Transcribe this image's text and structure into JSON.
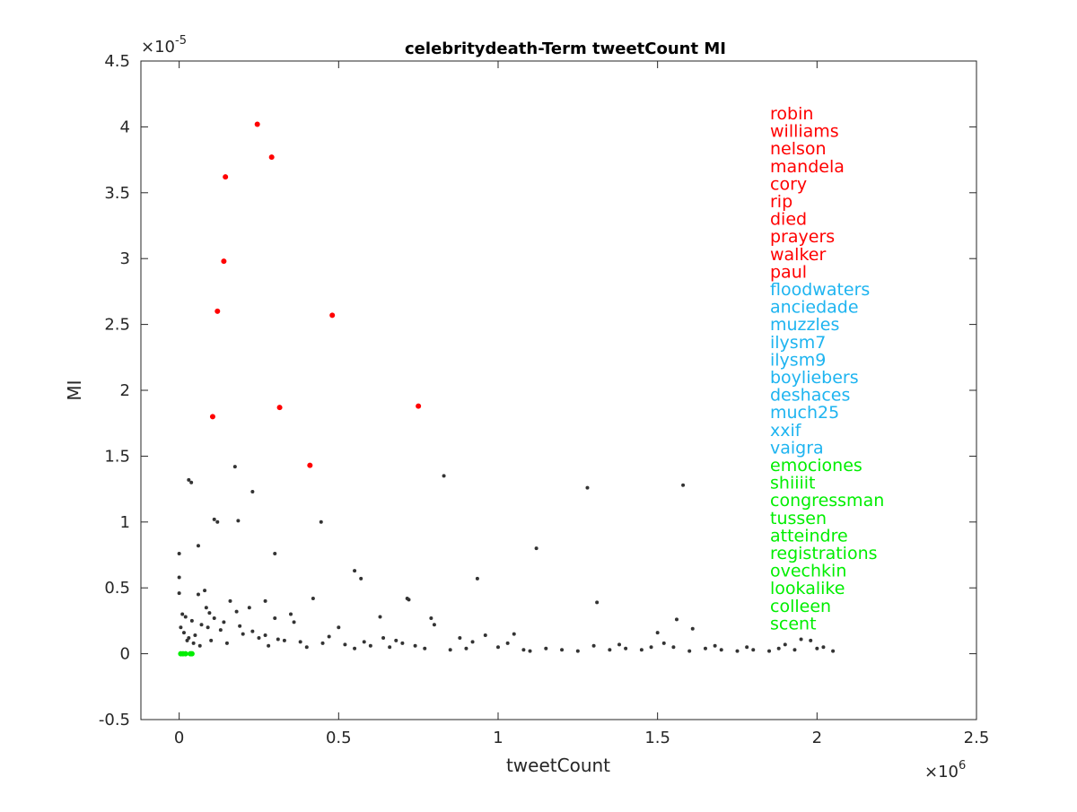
{
  "chart_data": {
    "type": "scatter",
    "title": "celebritydeath-Term tweetCount MI",
    "xlabel": "tweetCount",
    "ylabel": "MI",
    "x_exponent_label": "×10",
    "x_exponent_power": "6",
    "y_exponent_label": "×10",
    "y_exponent_power": "-5",
    "xlim": [
      -0.12,
      2.5
    ],
    "ylim": [
      -0.5,
      4.5
    ],
    "x_scale_note": "x values shown in units of 1e6",
    "y_scale_note": "y values shown in units of 1e-5",
    "xticks": [
      0,
      0.5,
      1,
      1.5,
      2,
      2.5
    ],
    "xtick_labels": [
      "0",
      "0.5",
      "1",
      "1.5",
      "2",
      "2.5"
    ],
    "yticks": [
      -0.5,
      0,
      0.5,
      1,
      1.5,
      2,
      2.5,
      3,
      3.5,
      4,
      4.5
    ],
    "ytick_labels": [
      "-0.5",
      "0",
      "0.5",
      "1",
      "1.5",
      "2",
      "2.5",
      "3",
      "3.5",
      "4",
      "4.5"
    ],
    "grid": false,
    "legend": "none",
    "colors": {
      "top": "#ff0000",
      "mid": "#1eb4f0",
      "low": "#00ee00",
      "other": "#333333"
    },
    "series": [
      {
        "color": "#ff0000",
        "points": [
          [
            0.245,
            4.02
          ],
          [
            0.29,
            3.77
          ],
          [
            0.145,
            3.62
          ],
          [
            0.14,
            2.98
          ],
          [
            0.12,
            2.6
          ],
          [
            0.48,
            2.57
          ],
          [
            0.105,
            1.8
          ],
          [
            0.315,
            1.87
          ],
          [
            0.75,
            1.88
          ],
          [
            0.41,
            1.43
          ]
        ]
      },
      {
        "color": "#00ee00",
        "points": [
          [
            0.005,
            0.0
          ],
          [
            0.012,
            0.0
          ],
          [
            0.02,
            0.0
          ],
          [
            0.035,
            0.0
          ],
          [
            0.04,
            0.0
          ]
        ]
      },
      {
        "color": "#333333",
        "points": [
          [
            0.175,
            1.42
          ],
          [
            0.03,
            1.32
          ],
          [
            0.038,
            1.3
          ],
          [
            0.23,
            1.23
          ],
          [
            0.83,
            1.35
          ],
          [
            1.28,
            1.26
          ],
          [
            1.58,
            1.28
          ],
          [
            0.11,
            1.02
          ],
          [
            0.12,
            1.0
          ],
          [
            0.185,
            1.01
          ],
          [
            0.445,
            1.0
          ],
          [
            0.06,
            0.82
          ],
          [
            0.0,
            0.76
          ],
          [
            0.3,
            0.76
          ],
          [
            1.12,
            0.8
          ],
          [
            0.55,
            0.63
          ],
          [
            0.57,
            0.57
          ],
          [
            0.935,
            0.57
          ],
          [
            0.0,
            0.58
          ],
          [
            0.72,
            0.41
          ],
          [
            0.715,
            0.42
          ],
          [
            1.31,
            0.39
          ],
          [
            0.16,
            0.4
          ],
          [
            0.27,
            0.4
          ],
          [
            0.42,
            0.42
          ],
          [
            0.0,
            0.46
          ],
          [
            0.06,
            0.45
          ],
          [
            0.08,
            0.48
          ],
          [
            0.63,
            0.28
          ],
          [
            0.79,
            0.27
          ],
          [
            1.56,
            0.26
          ],
          [
            1.61,
            0.19
          ],
          [
            0.8,
            0.22
          ],
          [
            0.35,
            0.3
          ],
          [
            0.22,
            0.35
          ],
          [
            0.36,
            0.24
          ],
          [
            0.5,
            0.2
          ],
          [
            1.05,
            0.15
          ],
          [
            0.96,
            0.14
          ],
          [
            0.88,
            0.12
          ],
          [
            1.5,
            0.16
          ],
          [
            0.3,
            0.27
          ],
          [
            0.18,
            0.32
          ],
          [
            0.01,
            0.3
          ],
          [
            0.02,
            0.28
          ],
          [
            0.04,
            0.25
          ],
          [
            0.07,
            0.22
          ],
          [
            0.09,
            0.2
          ],
          [
            0.13,
            0.18
          ],
          [
            0.2,
            0.15
          ],
          [
            0.25,
            0.12
          ],
          [
            0.33,
            0.1
          ],
          [
            0.38,
            0.09
          ],
          [
            0.45,
            0.08
          ],
          [
            0.52,
            0.07
          ],
          [
            0.6,
            0.06
          ],
          [
            0.66,
            0.05
          ],
          [
            0.7,
            0.08
          ],
          [
            0.74,
            0.06
          ],
          [
            0.77,
            0.04
          ],
          [
            0.9,
            0.04
          ],
          [
            1.0,
            0.05
          ],
          [
            1.08,
            0.03
          ],
          [
            1.15,
            0.04
          ],
          [
            1.2,
            0.03
          ],
          [
            1.25,
            0.02
          ],
          [
            1.35,
            0.03
          ],
          [
            1.4,
            0.04
          ],
          [
            1.45,
            0.03
          ],
          [
            1.55,
            0.05
          ],
          [
            1.65,
            0.04
          ],
          [
            1.7,
            0.03
          ],
          [
            1.75,
            0.02
          ],
          [
            1.8,
            0.03
          ],
          [
            1.9,
            0.07
          ],
          [
            1.95,
            0.11
          ],
          [
            1.98,
            0.1
          ],
          [
            2.02,
            0.05
          ],
          [
            2.05,
            0.02
          ],
          [
            0.03,
            0.12
          ],
          [
            0.05,
            0.14
          ],
          [
            0.1,
            0.1
          ],
          [
            0.15,
            0.08
          ],
          [
            0.28,
            0.06
          ],
          [
            0.4,
            0.05
          ],
          [
            0.55,
            0.04
          ],
          [
            0.85,
            0.03
          ],
          [
            1.1,
            0.02
          ],
          [
            1.6,
            0.02
          ],
          [
            1.85,
            0.02
          ],
          [
            0.005,
            0.2
          ],
          [
            0.015,
            0.16
          ],
          [
            0.025,
            0.1
          ],
          [
            0.045,
            0.08
          ],
          [
            0.065,
            0.06
          ],
          [
            0.085,
            0.35
          ],
          [
            0.095,
            0.31
          ],
          [
            0.11,
            0.27
          ],
          [
            0.14,
            0.24
          ],
          [
            0.19,
            0.21
          ],
          [
            0.23,
            0.17
          ],
          [
            0.27,
            0.14
          ],
          [
            0.31,
            0.11
          ],
          [
            0.47,
            0.13
          ],
          [
            0.58,
            0.09
          ],
          [
            0.64,
            0.12
          ],
          [
            0.68,
            0.1
          ],
          [
            0.92,
            0.09
          ],
          [
            1.03,
            0.08
          ],
          [
            1.3,
            0.06
          ],
          [
            1.38,
            0.07
          ],
          [
            1.48,
            0.05
          ],
          [
            1.52,
            0.08
          ],
          [
            1.68,
            0.06
          ],
          [
            1.78,
            0.05
          ],
          [
            1.88,
            0.04
          ],
          [
            1.93,
            0.03
          ],
          [
            2.0,
            0.04
          ]
        ]
      }
    ],
    "annotations": [
      {
        "text": "robin",
        "color": "#ff0000"
      },
      {
        "text": "williams",
        "color": "#ff0000"
      },
      {
        "text": "nelson",
        "color": "#ff0000"
      },
      {
        "text": "mandela",
        "color": "#ff0000"
      },
      {
        "text": "cory",
        "color": "#ff0000"
      },
      {
        "text": "rip",
        "color": "#ff0000"
      },
      {
        "text": "died",
        "color": "#ff0000"
      },
      {
        "text": "prayers",
        "color": "#ff0000"
      },
      {
        "text": "walker",
        "color": "#ff0000"
      },
      {
        "text": "paul",
        "color": "#ff0000"
      },
      {
        "text": "floodwaters",
        "color": "#1eb4f0"
      },
      {
        "text": "anciedade",
        "color": "#1eb4f0"
      },
      {
        "text": "muzzles",
        "color": "#1eb4f0"
      },
      {
        "text": "ilysm7",
        "color": "#1eb4f0"
      },
      {
        "text": "ilysm9",
        "color": "#1eb4f0"
      },
      {
        "text": "boyliebers",
        "color": "#1eb4f0"
      },
      {
        "text": "deshaces",
        "color": "#1eb4f0"
      },
      {
        "text": "much25",
        "color": "#1eb4f0"
      },
      {
        "text": "xxif",
        "color": "#1eb4f0"
      },
      {
        "text": "vaigra",
        "color": "#1eb4f0"
      },
      {
        "text": "emociones",
        "color": "#00ee00"
      },
      {
        "text": "shiiiit",
        "color": "#00ee00"
      },
      {
        "text": "congressman",
        "color": "#00ee00"
      },
      {
        "text": "tussen",
        "color": "#00ee00"
      },
      {
        "text": "atteindre",
        "color": "#00ee00"
      },
      {
        "text": "registrations",
        "color": "#00ee00"
      },
      {
        "text": "ovechkin",
        "color": "#00ee00"
      },
      {
        "text": "lookalike",
        "color": "#00ee00"
      },
      {
        "text": "colleen",
        "color": "#00ee00"
      },
      {
        "text": "scent",
        "color": "#00ee00"
      }
    ]
  }
}
